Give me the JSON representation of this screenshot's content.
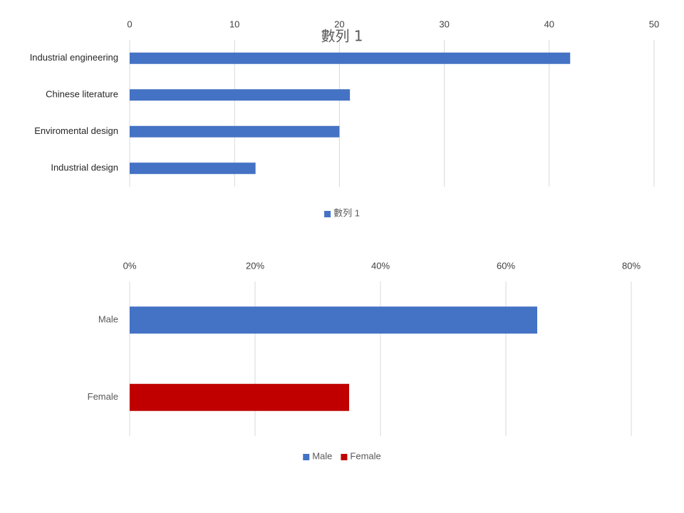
{
  "chart_data": [
    {
      "type": "barh",
      "title": "數列 1",
      "categories": [
        "Industrial engineering",
        "Chinese literature",
        "Enviromental design",
        "Industrial design"
      ],
      "series": [
        {
          "name": "數列 1",
          "color": "#4472c4",
          "values": [
            42,
            21,
            20,
            12
          ]
        }
      ],
      "xlim": [
        0,
        50
      ],
      "xticks": [
        0,
        10,
        20,
        30,
        40,
        50
      ],
      "grid": true
    },
    {
      "type": "barh",
      "categories": [
        "Male",
        "Female"
      ],
      "series": [
        {
          "name": "Male",
          "color": "#4472c4",
          "values": [
            65,
            null
          ]
        },
        {
          "name": "Female",
          "color": "#c00000",
          "values": [
            null,
            35
          ]
        }
      ],
      "xlim": [
        0,
        80
      ],
      "xticks": [
        {
          "value": 0,
          "label": "0%"
        },
        {
          "value": 20,
          "label": "20%"
        },
        {
          "value": 40,
          "label": "40%"
        },
        {
          "value": 60,
          "label": "60%"
        },
        {
          "value": 80,
          "label": "80%"
        }
      ],
      "grid": true
    }
  ]
}
